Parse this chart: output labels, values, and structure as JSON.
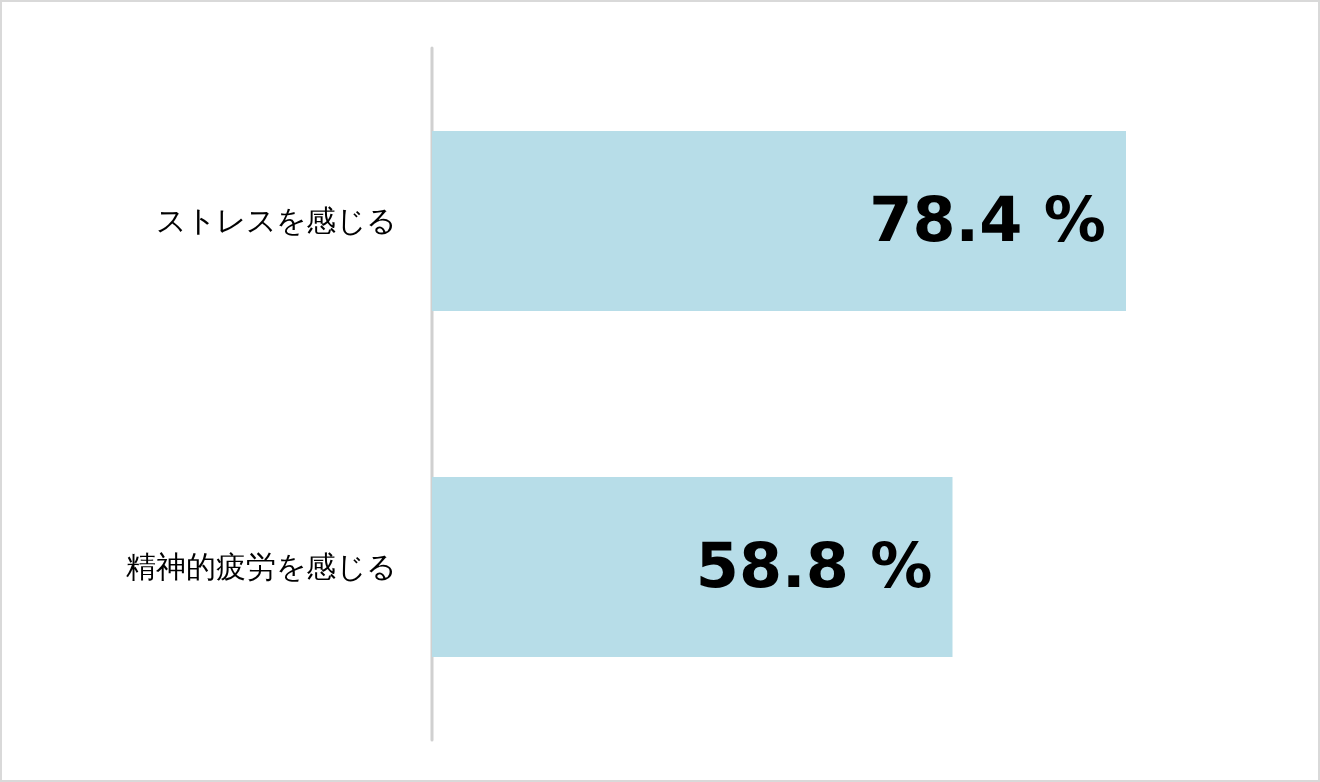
{
  "chart_data": {
    "type": "bar",
    "orientation": "horizontal",
    "categories": [
      "ストレスを感じる",
      "精神的疲労を感じる"
    ],
    "values": [
      78.4,
      58.8
    ],
    "value_labels": [
      "78.4 %",
      "58.8 %"
    ],
    "color": "#b7dde8"
  }
}
